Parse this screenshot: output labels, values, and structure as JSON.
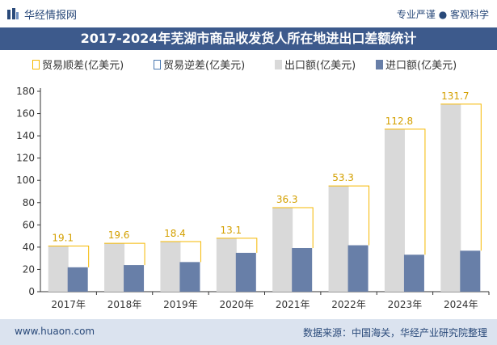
{
  "header": {
    "brand": "华经情报网",
    "slogan": "专业严谨 ● 客观科学"
  },
  "footer": {
    "url": "www.huaon.com",
    "source": "数据来源：中国海关，华经产业研究院整理"
  },
  "colors": {
    "title_bg": "#3d5a8c",
    "surplus": "#f5b800",
    "deficit": "#4a78b0",
    "export": "#d9d9d9",
    "import": "#687fa8",
    "footer_bg": "#dbe3ef"
  },
  "chart_data": {
    "type": "bar",
    "title": "2017-2024年芜湖市商品收发货人所在地进出口差额统计",
    "categories": [
      "2017年",
      "2018年",
      "2019年",
      "2020年",
      "2021年",
      "2022年",
      "2023年",
      "2024年"
    ],
    "series": [
      {
        "name": "贸易顺差(亿美元)",
        "kind": "outline-bracket",
        "values": [
          19.1,
          19.6,
          18.4,
          13.1,
          36.3,
          53.3,
          112.8,
          131.7
        ]
      },
      {
        "name": "贸易逆差(亿美元)",
        "kind": "outline-bracket",
        "values": [
          0,
          0,
          0,
          0,
          0,
          0,
          0,
          0
        ]
      },
      {
        "name": "出口额(亿美元)",
        "kind": "bar",
        "values": [
          41,
          43.5,
          45,
          48,
          75.5,
          95,
          146,
          168.5
        ]
      },
      {
        "name": "进口额(亿美元)",
        "kind": "bar",
        "values": [
          21.9,
          23.9,
          26.6,
          34.9,
          39.2,
          41.7,
          33.2,
          36.8
        ]
      }
    ],
    "data_labels": [
      "19.1",
      "19.6",
      "18.4",
      "13.1",
      "36.3",
      "53.3",
      "112.8",
      "131.7"
    ],
    "ylim": [
      0,
      180
    ],
    "yticks": [
      "0",
      "20",
      "40",
      "60",
      "80",
      "100",
      "120",
      "140",
      "160",
      "180"
    ],
    "grid": false,
    "legend_position": "top"
  }
}
